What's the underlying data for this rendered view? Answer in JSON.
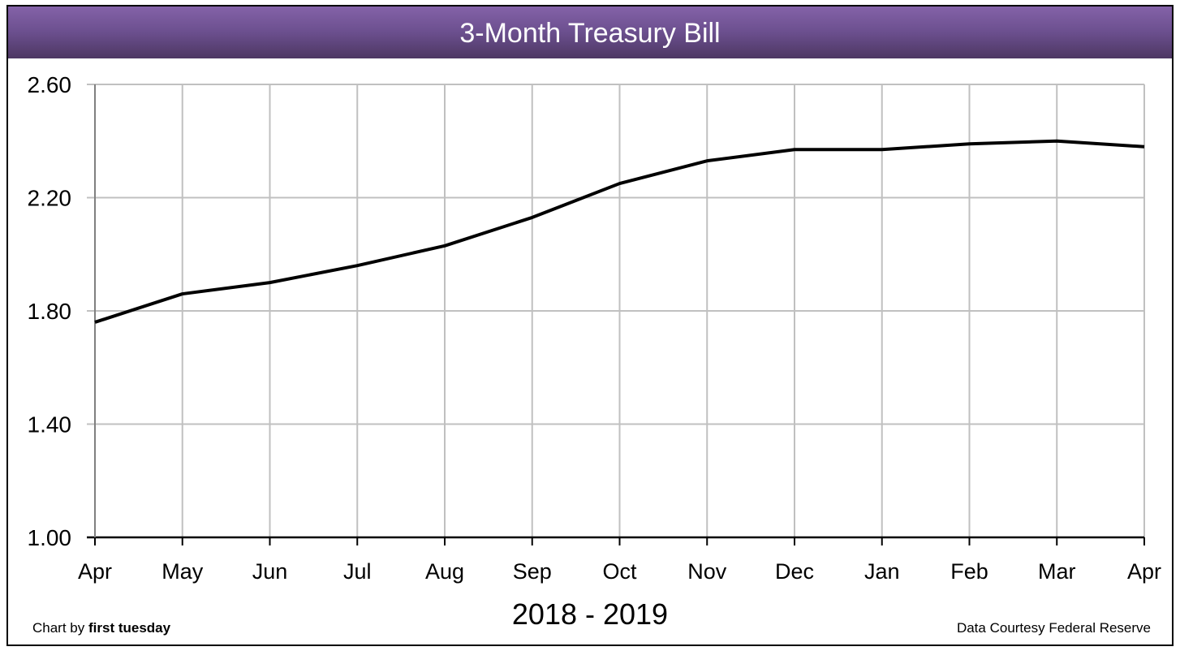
{
  "chart_data": {
    "type": "line",
    "title": "3-Month Treasury Bill",
    "xlabel": "2018 - 2019",
    "ylabel": "",
    "categories": [
      "Apr",
      "May",
      "Jun",
      "Jul",
      "Aug",
      "Sep",
      "Oct",
      "Nov",
      "Dec",
      "Jan",
      "Feb",
      "Mar",
      "Apr"
    ],
    "series": [
      {
        "name": "3-Month Treasury Bill",
        "color": "#000000",
        "values": [
          1.76,
          1.86,
          1.9,
          1.96,
          2.03,
          2.13,
          2.25,
          2.33,
          2.37,
          2.37,
          2.39,
          2.4,
          2.38
        ]
      }
    ],
    "ylim": [
      1.0,
      2.6
    ],
    "yticks": [
      "1.00",
      "1.40",
      "1.80",
      "2.20",
      "2.60"
    ],
    "grid": true,
    "legend": "none"
  },
  "header": {
    "title": "3-Month Treasury Bill",
    "bar_color_top": "#8462a8",
    "bar_color_bottom": "#4d3763"
  },
  "footer": {
    "credit_prefix": "Chart by ",
    "credit_brand": "first tuesday",
    "source": "Data Courtesy Federal Reserve"
  }
}
